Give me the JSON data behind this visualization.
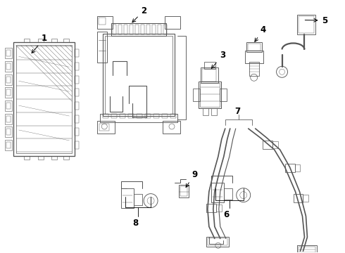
{
  "background_color": "#ffffff",
  "line_color": "#555555",
  "label_color": "#000000",
  "figure_width": 4.9,
  "figure_height": 3.6,
  "dpi": 100,
  "label_fontsize": 8.5,
  "lw": 0.8
}
